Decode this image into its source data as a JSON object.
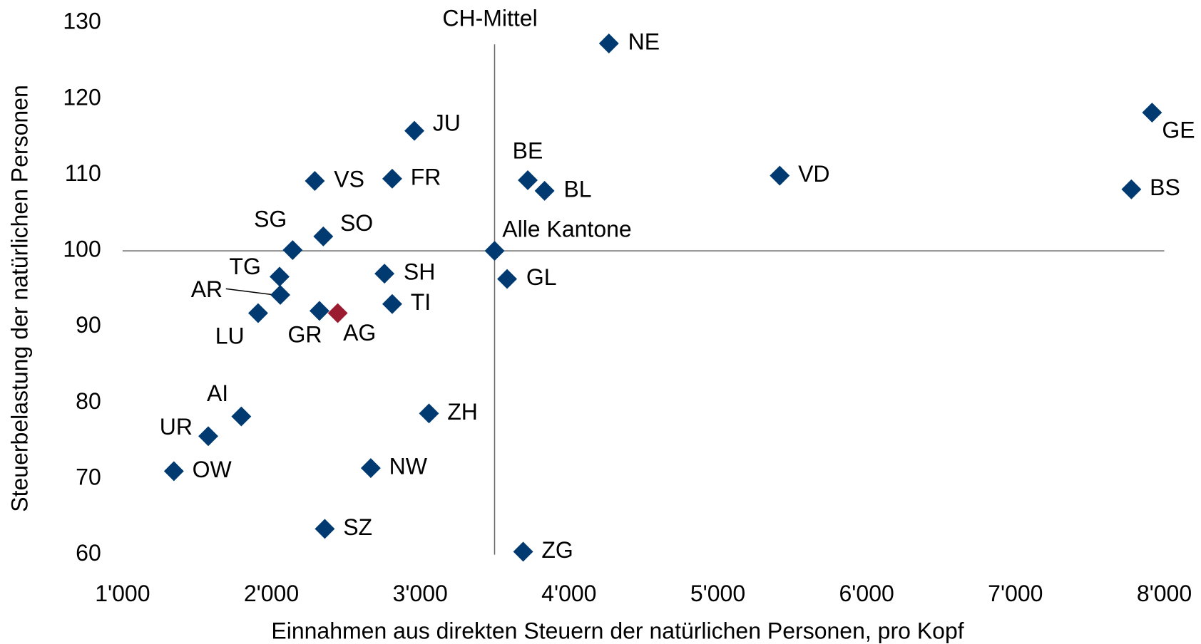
{
  "chart_data": {
    "type": "scatter",
    "x_label": "Einnahmen aus direkten Steuern der natürlichen Personen, pro Kopf",
    "y_label": "Steuerbelastung der natürlichen Personen",
    "labels": [
      "NE",
      "GE",
      "JU",
      "BE",
      "BL",
      "VD",
      "BS",
      "VS",
      "FR",
      "SO",
      "SG",
      "Alle Kantone",
      "TG",
      "SH",
      "GL",
      "AR",
      "TI",
      "LU",
      "GR",
      "AG",
      "AI",
      "ZH",
      "UR",
      "OW",
      "NW",
      "SZ",
      "ZG"
    ],
    "x": [
      4268,
      7918,
      2961,
      3723,
      3836,
      5416,
      7779,
      2292,
      2812,
      2349,
      2143,
      3500,
      2055,
      2760,
      3584,
      2060,
      2812,
      1911,
      2323,
      2446,
      1798,
      3059,
      1576,
      1345,
      2668,
      2359,
      3692
    ],
    "y": [
      127.3,
      118.2,
      115.8,
      109.3,
      107.9,
      109.9,
      108.1,
      109.2,
      109.5,
      101.9,
      100.1,
      100,
      96.6,
      97.0,
      96.3,
      94.2,
      93.0,
      91.8,
      92.1,
      91.8,
      78.2,
      78.6,
      75.6,
      71.0,
      71.4,
      63.4,
      60.4
    ],
    "colors": [
      "#003a70",
      "#003a70",
      "#003a70",
      "#003a70",
      "#003a70",
      "#003a70",
      "#003a70",
      "#003a70",
      "#003a70",
      "#003a70",
      "#003a70",
      "#003a70",
      "#003a70",
      "#003a70",
      "#003a70",
      "#003a70",
      "#003a70",
      "#003a70",
      "#003a70",
      "#9b1b30",
      "#003a70",
      "#003a70",
      "#003a70",
      "#003a70",
      "#003a70",
      "#003a70",
      "#003a70"
    ],
    "xlim": [
      1000,
      8000
    ],
    "xticks": [
      {
        "value": 1000,
        "label": "1'000"
      },
      {
        "value": 2000,
        "label": "2'000"
      },
      {
        "value": 3000,
        "label": "3'000"
      },
      {
        "value": 4000,
        "label": "4'000"
      },
      {
        "value": 5000,
        "label": "5'000"
      },
      {
        "value": 6000,
        "label": "6'000"
      },
      {
        "value": 7000,
        "label": "7'000"
      },
      {
        "value": 8000,
        "label": "8'000"
      }
    ],
    "ylim": [
      60,
      130
    ],
    "yticks": [
      60,
      70,
      80,
      90,
      100,
      110,
      120,
      130
    ],
    "vline": {
      "value": 3500,
      "label": "CH-Mittel"
    },
    "hline": 100
  }
}
